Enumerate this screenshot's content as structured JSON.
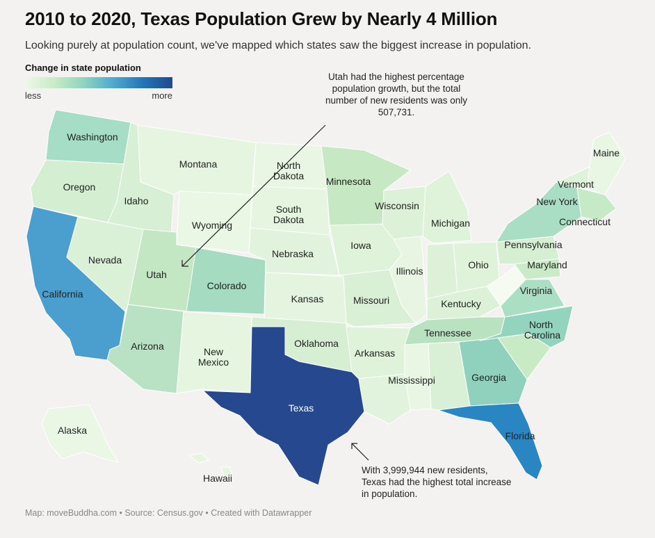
{
  "title": "2010 to 2020, Texas Population Grew by Nearly 4 Million",
  "subtitle": "Looking purely at population count, we've mapped which states saw the biggest increase in population.",
  "legend": {
    "title": "Change in state population",
    "low_label": "less",
    "high_label": "more",
    "colors": [
      "#eef7e7",
      "#c8ebc7",
      "#8fd3bf",
      "#4fa9cf",
      "#2574b8",
      "#1f4a90"
    ]
  },
  "annotations": {
    "utah": "Utah had the highest percentage population growth, but the total number of new residents was only 507,731.",
    "texas": "With 3,999,944 new residents, Texas had the highest total increase in population."
  },
  "states": {
    "Washington": "Washington",
    "Oregon": "Oregon",
    "California": "California",
    "Idaho": "Idaho",
    "Nevada": "Nevada",
    "Montana": "Montana",
    "Wyoming": "Wyoming",
    "Utah": "Utah",
    "Arizona": "Arizona",
    "Colorado": "Colorado",
    "NewMexico": [
      "New",
      "Mexico"
    ],
    "NorthDakota": [
      "North",
      "Dakota"
    ],
    "SouthDakota": [
      "South",
      "Dakota"
    ],
    "Nebraska": "Nebraska",
    "Kansas": "Kansas",
    "Oklahoma": "Oklahoma",
    "Texas": "Texas",
    "Minnesota": "Minnesota",
    "Iowa": "Iowa",
    "Missouri": "Missouri",
    "Arkansas": "Arkansas",
    "Wisconsin": "Wisconsin",
    "Illinois": "Illinois",
    "Michigan": "Michigan",
    "Mississippi": "Mississippi",
    "Kentucky": "Kentucky",
    "Tennessee": "Tennessee",
    "Ohio": "Ohio",
    "Georgia": "Georgia",
    "Florida": "Florida",
    "Pennsylvania": "Pennsylvania",
    "Virginia": "Virginia",
    "NorthCarolina": [
      "North",
      "Carolina"
    ],
    "Maryland": "Maryland",
    "NewYork": "New York",
    "Vermont": "Vermont",
    "Maine": "Maine",
    "Connecticut": "Connecticut",
    "Alaska": "Alaska",
    "Hawaii": "Hawaii"
  },
  "footer": "Map: moveBuddha.com • Source: Census.gov • Created with Datawrapper"
}
